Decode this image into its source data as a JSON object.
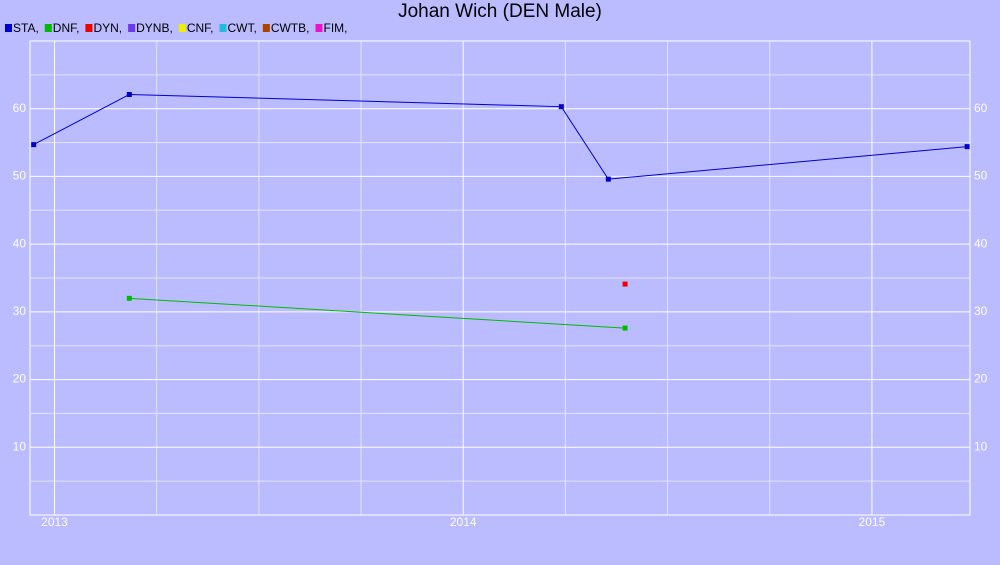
{
  "chart_data": {
    "type": "line",
    "title": "Johan Wich (DEN Male)",
    "series": [
      {
        "name": "STA,",
        "color": "#0000cc",
        "x": [
          2012.949,
          2013.183,
          2014.24,
          2014.355,
          2015.233
        ],
        "values": [
          54.7,
          62.1,
          60.3,
          49.6,
          54.4
        ]
      },
      {
        "name": "DNF,",
        "color": "#00bb00",
        "x": [
          2013.183,
          2014.396
        ],
        "values": [
          32.0,
          27.6
        ]
      },
      {
        "name": "DYN,",
        "color": "#ee0000",
        "x": [
          2014.396
        ],
        "values": [
          34.1
        ]
      },
      {
        "name": "DYNB,",
        "color": "#6a3be8",
        "x": [],
        "values": []
      },
      {
        "name": "CNF,",
        "color": "#eeee00",
        "x": [],
        "values": []
      },
      {
        "name": "CWT,",
        "color": "#22bbdd",
        "x": [],
        "values": []
      },
      {
        "name": "CWTB,",
        "color": "#aa4400",
        "x": [],
        "values": []
      },
      {
        "name": "FIM,",
        "color": "#ee11cc",
        "x": [],
        "values": []
      }
    ],
    "xlim": [
      2012.94,
      2015.24
    ],
    "xticks": [
      2013,
      2014,
      2015
    ],
    "x_minor_ticks": [
      2013.25,
      2013.5,
      2013.75,
      2014.25,
      2014.5,
      2014.75
    ],
    "ylim": [
      0,
      70
    ],
    "yticks": [
      10,
      20,
      30,
      40,
      50,
      60
    ],
    "y_minor_ticks": [
      5,
      15,
      25,
      35,
      45,
      55,
      65
    ],
    "grid": true,
    "background": "#bbbbff"
  }
}
